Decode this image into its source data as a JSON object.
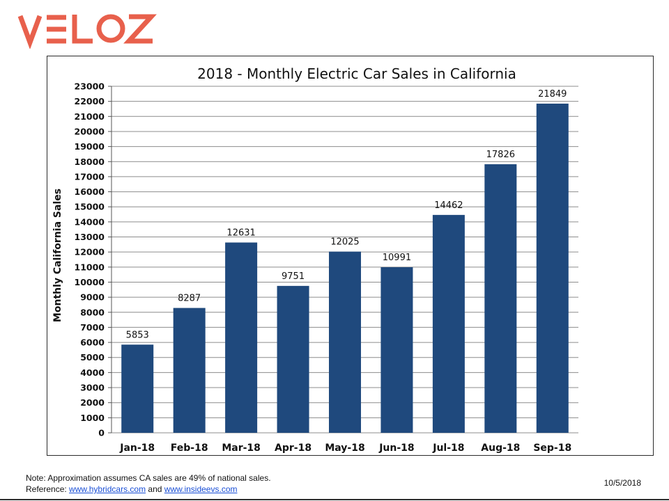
{
  "brand": {
    "logo_text": "VELOZ",
    "logo_color": "#e8604c"
  },
  "chart_data": {
    "type": "bar",
    "title": "2018 - Monthly Electric Car Sales in California",
    "xlabel": "",
    "ylabel": "Monthly California Sales",
    "categories": [
      "Jan-18",
      "Feb-18",
      "Mar-18",
      "Apr-18",
      "May-18",
      "Jun-18",
      "Jul-18",
      "Aug-18",
      "Sep-18"
    ],
    "values": [
      5853,
      8287,
      12631,
      9751,
      12025,
      10991,
      14462,
      17826,
      21849
    ],
    "data_labels": true,
    "ylim": [
      0,
      23000
    ],
    "ytick_step": 1000,
    "grid": true,
    "legend": "none",
    "bar_color": "#1f497d"
  },
  "footer": {
    "note": "Note:  Approximation assumes CA sales are 49% of national sales.",
    "reference_prefix": "Reference: ",
    "link1": "www.hybridcars.com",
    "reference_mid": " and ",
    "link2": "www.insideevs.com",
    "date": "10/5/2018"
  }
}
